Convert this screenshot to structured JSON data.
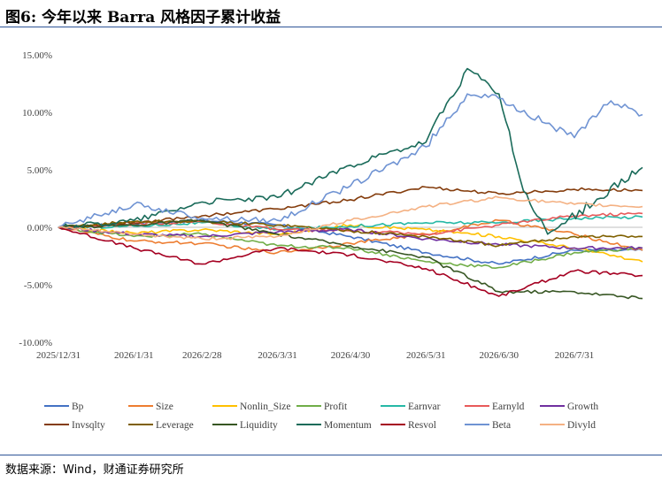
{
  "page": {
    "title": "图6: 今年以来 Barra 风格因子累计收益",
    "source": "数据来源：Wind，财通证券研究所"
  },
  "chart_data": {
    "type": "line",
    "title": "",
    "xlabel": "",
    "ylabel": "",
    "ylim": [
      -10,
      15
    ],
    "yticks": [
      15,
      10,
      5,
      0,
      -5,
      -10
    ],
    "ytick_labels": [
      "15.00%",
      "10.00%",
      "5.00%",
      "0.00%",
      "-5.00%",
      "-10.00%"
    ],
    "x_labels": [
      "2025/12/31",
      "2026/1/31",
      "2026/2/28",
      "2026/3/31",
      "2026/4/30",
      "2026/5/31",
      "2026/6/30",
      "2026/7/31"
    ],
    "x_end": "2026/8/28",
    "grid": "horizontal",
    "legend_position": "bottom",
    "series": [
      {
        "name": "Bp",
        "color": "#4472C4",
        "points": [
          [
            "2025/12/31",
            0
          ],
          [
            "2026/1/31",
            0.3
          ],
          [
            "2026/2/28",
            0.6
          ],
          [
            "2026/3/31",
            0.2
          ],
          [
            "2026/4/30",
            -0.8
          ],
          [
            "2026/5/31",
            -2.2
          ],
          [
            "2026/6/30",
            -3.2
          ],
          [
            "2026/7/31",
            -2.0
          ],
          [
            "2026/8/28",
            -2.0
          ]
        ]
      },
      {
        "name": "Size",
        "color": "#ED7D31",
        "points": [
          [
            "2025/12/31",
            0
          ],
          [
            "2026/1/31",
            -1.2
          ],
          [
            "2026/2/28",
            -1.4
          ],
          [
            "2026/3/31",
            -2.2
          ],
          [
            "2026/4/30",
            -1.4
          ],
          [
            "2026/5/31",
            -0.6
          ],
          [
            "2026/6/30",
            0.6
          ],
          [
            "2026/7/31",
            -0.6
          ],
          [
            "2026/8/28",
            -2.0
          ]
        ]
      },
      {
        "name": "Nonlin_Size",
        "color": "#FFC000",
        "points": [
          [
            "2025/12/31",
            0
          ],
          [
            "2026/1/31",
            -0.5
          ],
          [
            "2026/2/28",
            -0.2
          ],
          [
            "2026/3/31",
            -0.6
          ],
          [
            "2026/4/30",
            0.2
          ],
          [
            "2026/5/31",
            -0.2
          ],
          [
            "2026/6/30",
            -0.8
          ],
          [
            "2026/7/31",
            -1.8
          ],
          [
            "2026/8/28",
            -3.0
          ]
        ]
      },
      {
        "name": "Profit",
        "color": "#70AD47",
        "points": [
          [
            "2025/12/31",
            0
          ],
          [
            "2026/1/31",
            -0.8
          ],
          [
            "2026/2/28",
            -0.6
          ],
          [
            "2026/3/31",
            -1.6
          ],
          [
            "2026/4/30",
            -1.8
          ],
          [
            "2026/5/31",
            -3.0
          ],
          [
            "2026/6/30",
            -3.5
          ],
          [
            "2026/7/31",
            -2.2
          ],
          [
            "2026/8/28",
            -1.8
          ]
        ]
      },
      {
        "name": "Earnvar",
        "color": "#26B8A6",
        "points": [
          [
            "2025/12/31",
            0
          ],
          [
            "2026/1/31",
            0.1
          ],
          [
            "2026/2/28",
            0.4
          ],
          [
            "2026/3/31",
            -0.2
          ],
          [
            "2026/4/30",
            0.1
          ],
          [
            "2026/5/31",
            0.4
          ],
          [
            "2026/6/30",
            0.4
          ],
          [
            "2026/7/31",
            0.8
          ],
          [
            "2026/8/28",
            0.9
          ]
        ]
      },
      {
        "name": "Earnyld",
        "color": "#E85A5A",
        "points": [
          [
            "2025/12/31",
            0
          ],
          [
            "2026/1/31",
            0.3
          ],
          [
            "2026/2/28",
            0.5
          ],
          [
            "2026/3/31",
            -0.2
          ],
          [
            "2026/4/30",
            -0.3
          ],
          [
            "2026/5/31",
            -0.6
          ],
          [
            "2026/6/30",
            0.2
          ],
          [
            "2026/7/31",
            1.0
          ],
          [
            "2026/8/28",
            1.2
          ]
        ]
      },
      {
        "name": "Growth",
        "color": "#7030A0",
        "points": [
          [
            "2025/12/31",
            0
          ],
          [
            "2026/1/31",
            -0.6
          ],
          [
            "2026/2/28",
            -0.8
          ],
          [
            "2026/3/31",
            -0.4
          ],
          [
            "2026/4/30",
            -0.2
          ],
          [
            "2026/5/31",
            -1.0
          ],
          [
            "2026/6/30",
            -1.5
          ],
          [
            "2026/7/31",
            -1.8
          ],
          [
            "2026/8/28",
            -1.8
          ]
        ]
      },
      {
        "name": "Invsqlty",
        "color": "#843C0C",
        "points": [
          [
            "2025/12/31",
            0
          ],
          [
            "2026/1/31",
            0.4
          ],
          [
            "2026/2/28",
            1.0
          ],
          [
            "2026/3/31",
            1.6
          ],
          [
            "2026/4/30",
            2.4
          ],
          [
            "2026/5/31",
            3.5
          ],
          [
            "2026/6/30",
            2.9
          ],
          [
            "2026/7/31",
            3.3
          ],
          [
            "2026/8/28",
            3.2
          ]
        ]
      },
      {
        "name": "Leverage",
        "color": "#7F6000",
        "points": [
          [
            "2025/12/31",
            0
          ],
          [
            "2026/1/31",
            0.5
          ],
          [
            "2026/2/28",
            0.5
          ],
          [
            "2026/3/31",
            0.2
          ],
          [
            "2026/4/30",
            -0.3
          ],
          [
            "2026/5/31",
            -0.8
          ],
          [
            "2026/6/30",
            -1.6
          ],
          [
            "2026/7/31",
            -0.8
          ],
          [
            "2026/8/28",
            -0.8
          ]
        ]
      },
      {
        "name": "Liquidity",
        "color": "#375623",
        "points": [
          [
            "2025/12/31",
            0
          ],
          [
            "2026/1/31",
            0.2
          ],
          [
            "2026/2/28",
            0.6
          ],
          [
            "2026/3/31",
            -0.6
          ],
          [
            "2026/4/30",
            -1.6
          ],
          [
            "2026/5/31",
            -2.6
          ],
          [
            "2026/6/30",
            -5.6
          ],
          [
            "2026/7/31",
            -5.6
          ],
          [
            "2026/8/28",
            -6.2
          ]
        ]
      },
      {
        "name": "Momentum",
        "color": "#1A6B5A",
        "points": [
          [
            "2025/12/31",
            0
          ],
          [
            "2026/1/31",
            0.6
          ],
          [
            "2026/2/28",
            2.2
          ],
          [
            "2026/3/31",
            2.6
          ],
          [
            "2026/4/30",
            5.4
          ],
          [
            "2026/5/31",
            7.4
          ],
          [
            "2026/6/17",
            13.8
          ],
          [
            "2026/6/30",
            11.6
          ],
          [
            "2026/7/10",
            3.2
          ],
          [
            "2026/7/20",
            -0.6
          ],
          [
            "2026/8/28",
            5.2
          ]
        ]
      },
      {
        "name": "Resvol",
        "color": "#A50021",
        "points": [
          [
            "2025/12/31",
            0
          ],
          [
            "2026/1/31",
            -1.8
          ],
          [
            "2026/2/28",
            -3.2
          ],
          [
            "2026/3/31",
            -1.8
          ],
          [
            "2026/4/30",
            -2.4
          ],
          [
            "2026/5/31",
            -3.6
          ],
          [
            "2026/6/30",
            -6.0
          ],
          [
            "2026/7/31",
            -3.8
          ],
          [
            "2026/8/28",
            -4.2
          ]
        ]
      },
      {
        "name": "Beta",
        "color": "#6F93D3",
        "points": [
          [
            "2025/12/31",
            0
          ],
          [
            "2026/1/31",
            2.0
          ],
          [
            "2026/2/28",
            0.8
          ],
          [
            "2026/3/31",
            0.6
          ],
          [
            "2026/4/30",
            3.6
          ],
          [
            "2026/5/31",
            7.0
          ],
          [
            "2026/6/17",
            11.6
          ],
          [
            "2026/6/30",
            11.2
          ],
          [
            "2026/7/31",
            7.8
          ],
          [
            "2026/8/15",
            11.0
          ],
          [
            "2026/8/28",
            9.8
          ]
        ]
      },
      {
        "name": "Divyld",
        "color": "#F4B183",
        "points": [
          [
            "2025/12/31",
            0
          ],
          [
            "2026/1/31",
            -0.6
          ],
          [
            "2026/2/28",
            -1.0
          ],
          [
            "2026/3/31",
            -0.8
          ],
          [
            "2026/4/30",
            0.6
          ],
          [
            "2026/5/31",
            1.8
          ],
          [
            "2026/6/30",
            2.6
          ],
          [
            "2026/7/31",
            2.0
          ],
          [
            "2026/8/28",
            1.8
          ]
        ]
      }
    ]
  }
}
